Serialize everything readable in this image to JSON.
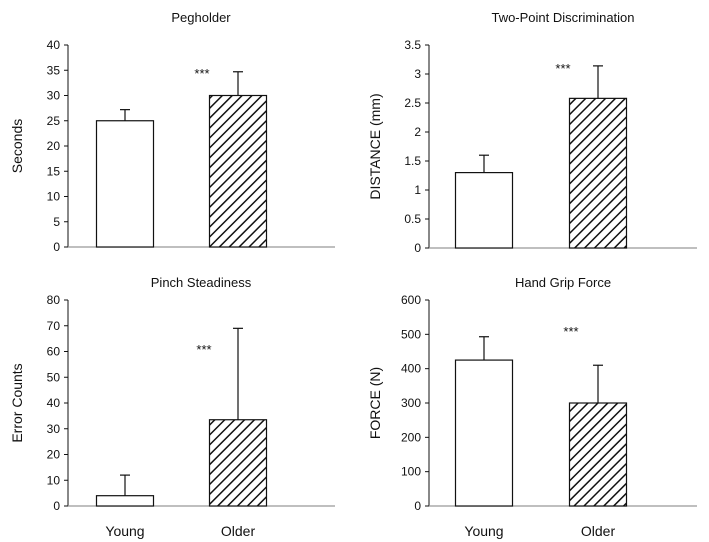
{
  "colors": {
    "ink": "#111111",
    "background": "#ffffff",
    "young_fill": "#ffffff",
    "older_fill": "hatched"
  },
  "chart_data": [
    {
      "type": "bar",
      "title": "Pegholder",
      "ylabel": "Seconds",
      "ylim": [
        0,
        40
      ],
      "yticks": [
        "0",
        "5",
        "10",
        "15",
        "20",
        "25",
        "30",
        "35",
        "40"
      ],
      "categories": [
        "Young",
        "Older"
      ],
      "values": [
        25,
        30
      ],
      "errors": [
        2.2,
        4.7
      ],
      "significance": "***",
      "show_category_labels": false
    },
    {
      "type": "bar",
      "title": "Two-Point Discrimination",
      "ylabel": "DISTANCE (mm)",
      "ylim": [
        0,
        3.5
      ],
      "yticks": [
        "0",
        "0.5",
        "1",
        "1.5",
        "2",
        "2.5",
        "3",
        "3.5"
      ],
      "categories": [
        "Young",
        "Older"
      ],
      "values": [
        1.3,
        2.58
      ],
      "errors": [
        0.3,
        0.56
      ],
      "significance": "***",
      "show_category_labels": false
    },
    {
      "type": "bar",
      "title": "Pinch Steadiness",
      "ylabel": "Error Counts",
      "ylim": [
        0,
        80
      ],
      "yticks": [
        "0",
        "10",
        "20",
        "30",
        "40",
        "50",
        "60",
        "70",
        "80"
      ],
      "categories": [
        "Young",
        "Older"
      ],
      "values": [
        4,
        33.5
      ],
      "errors": [
        8,
        35.5
      ],
      "significance": "***",
      "show_category_labels": true
    },
    {
      "type": "bar",
      "title": "Hand Grip Force",
      "ylabel": "FORCE (N)",
      "ylim": [
        0,
        600
      ],
      "yticks": [
        "0",
        "100",
        "200",
        "300",
        "400",
        "500",
        "600"
      ],
      "categories": [
        "Young",
        "Older"
      ],
      "values": [
        425,
        300
      ],
      "errors": [
        68,
        110
      ],
      "significance": "***",
      "show_category_labels": true
    }
  ]
}
